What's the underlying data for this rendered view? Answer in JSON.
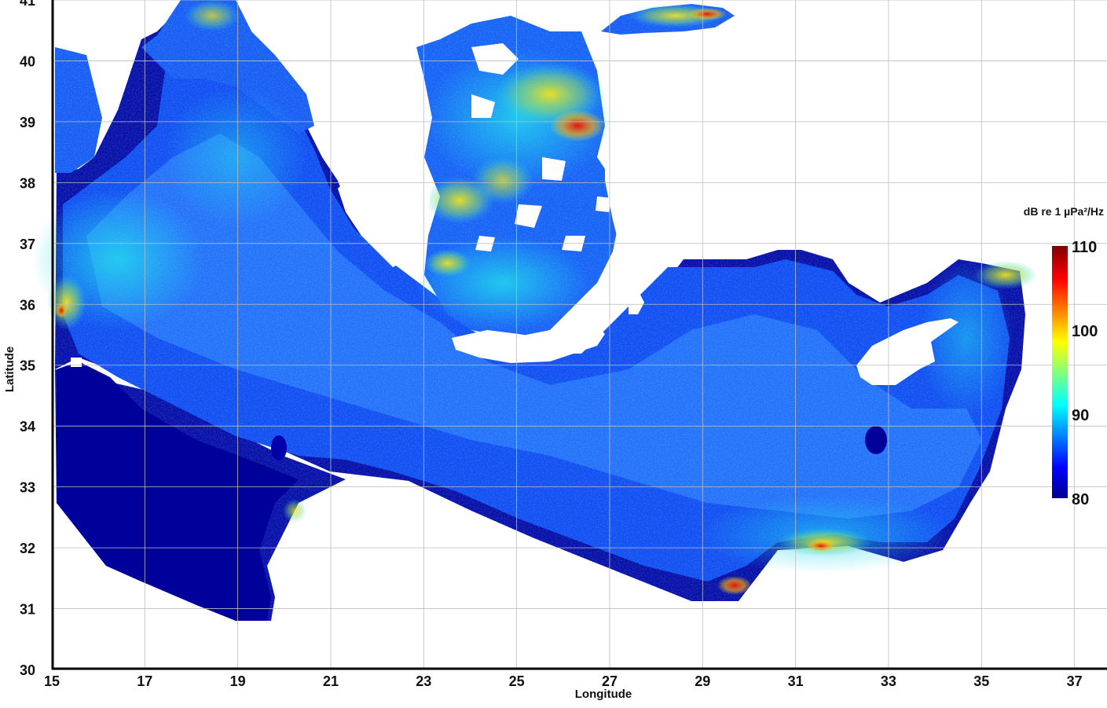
{
  "chart_data": {
    "type": "heatmap",
    "title": "",
    "xlabel": "Longitude",
    "ylabel": "Latitude",
    "xlim": [
      15,
      37.7
    ],
    "ylim": [
      30,
      41
    ],
    "x_ticks": [
      15,
      17,
      19,
      21,
      23,
      25,
      27,
      29,
      31,
      33,
      35,
      37
    ],
    "y_ticks": [
      30,
      31,
      32,
      33,
      34,
      35,
      36,
      37,
      38,
      39,
      40,
      41
    ],
    "grid": true,
    "colorbar": {
      "label": "dB re 1 µPa²/Hz",
      "min": 80,
      "max": 110,
      "ticks": [
        80,
        90,
        100,
        110
      ],
      "colormap": "jet"
    },
    "colors": {
      "land": "#ffffff",
      "grid": "#bdbdbd",
      "axis": "#000000",
      "deep_blue": "#00008f",
      "mid_blue": "#0a3cf0",
      "light_blue": "#2f8cff",
      "cyan": "#19d7f0",
      "yellow": "#f0e21e",
      "red": "#d2140a"
    }
  }
}
